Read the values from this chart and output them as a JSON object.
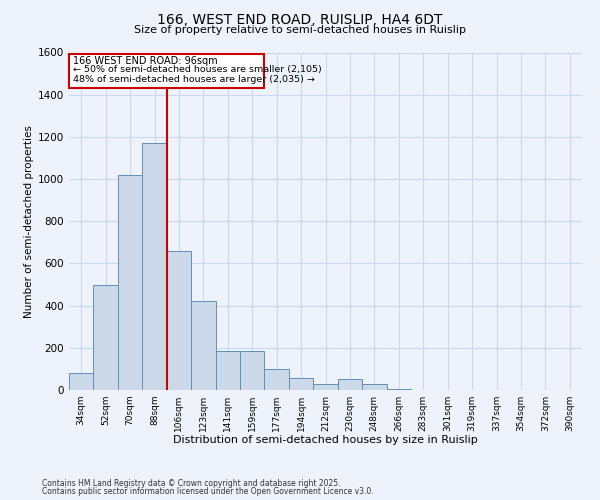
{
  "title1": "166, WEST END ROAD, RUISLIP, HA4 6DT",
  "title2": "Size of property relative to semi-detached houses in Ruislip",
  "xlabel": "Distribution of semi-detached houses by size in Ruislip",
  "ylabel": "Number of semi-detached properties",
  "categories": [
    "34sqm",
    "52sqm",
    "70sqm",
    "88sqm",
    "106sqm",
    "123sqm",
    "141sqm",
    "159sqm",
    "177sqm",
    "194sqm",
    "212sqm",
    "230sqm",
    "248sqm",
    "266sqm",
    "283sqm",
    "301sqm",
    "319sqm",
    "337sqm",
    "354sqm",
    "372sqm",
    "390sqm"
  ],
  "values": [
    80,
    500,
    1020,
    1170,
    660,
    420,
    185,
    185,
    100,
    55,
    30,
    50,
    30,
    5,
    0,
    0,
    0,
    0,
    0,
    0,
    0
  ],
  "bar_color": "#ccd9e8",
  "bar_edge_color": "#6090b8",
  "vline_color": "#cc0000",
  "annotation_title": "166 WEST END ROAD: 96sqm",
  "annotation_line1": "← 50% of semi-detached houses are smaller (2,105)",
  "annotation_line2": "48% of semi-detached houses are larger (2,035) →",
  "annotation_box_color": "#cc0000",
  "ylim": [
    0,
    1600
  ],
  "yticks": [
    0,
    200,
    400,
    600,
    800,
    1000,
    1200,
    1400,
    1600
  ],
  "grid_color": "#c8d8f0",
  "footnote1": "Contains HM Land Registry data © Crown copyright and database right 2025.",
  "footnote2": "Contains public sector information licensed under the Open Government Licence v3.0.",
  "bg_color": "#eef2fa"
}
